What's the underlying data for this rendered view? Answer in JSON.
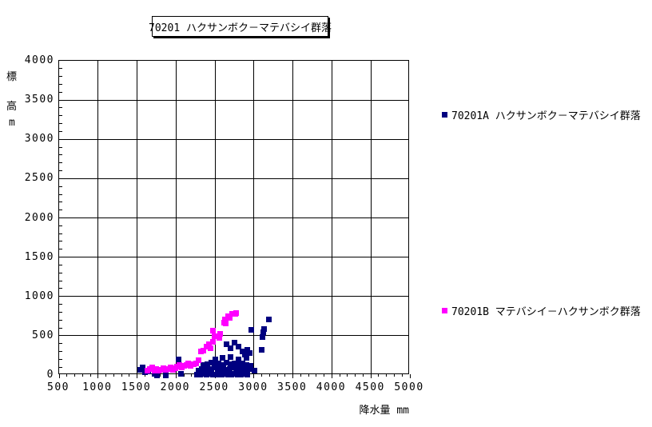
{
  "title": "70201 ハクサンボク－マテバシイ群落",
  "y_axis_title_chars": [
    "標",
    "高",
    "m"
  ],
  "x_axis_title": "降水量 mm",
  "colors": {
    "series_a": "#000080",
    "series_b": "#FF00FF",
    "grid": "#000000",
    "background": "#FFFFFF"
  },
  "legend": {
    "items": [
      {
        "label": "70201A ハクサンボク－マテバシイ群落",
        "color": "#000080"
      },
      {
        "label": "70201B マテバシイ－ハクサンボク群落",
        "color": "#FF00FF"
      }
    ]
  },
  "chart_data": {
    "type": "scatter",
    "title": "70201 ハクサンボク－マテバシイ群落",
    "xlabel": "降水量 mm",
    "ylabel": "標高m",
    "xlim": [
      500,
      5000
    ],
    "ylim": [
      0,
      4000
    ],
    "xticks": [
      500,
      1000,
      1500,
      2000,
      2500,
      3000,
      3500,
      4000,
      4500,
      5000
    ],
    "yticks": [
      0,
      500,
      1000,
      1500,
      2000,
      2500,
      3000,
      3500,
      4000
    ],
    "minor_tick_step_x": 100,
    "minor_tick_step_y": 100,
    "grid": true,
    "legend_position": "right",
    "marker": "square",
    "series": [
      {
        "name": "70201A ハクサンボク－マテバシイ群落",
        "color": "#000080",
        "points": [
          [
            1545,
            70
          ],
          [
            1570,
            100
          ],
          [
            1600,
            40
          ],
          [
            1640,
            45
          ],
          [
            1690,
            85
          ],
          [
            1730,
            20
          ],
          [
            1760,
            0
          ],
          [
            1870,
            0
          ],
          [
            2030,
            200
          ],
          [
            2060,
            15
          ],
          [
            2270,
            10
          ],
          [
            2310,
            5
          ],
          [
            2350,
            15
          ],
          [
            2390,
            5
          ],
          [
            2430,
            20
          ],
          [
            2470,
            10
          ],
          [
            2510,
            5
          ],
          [
            2550,
            15
          ],
          [
            2590,
            5
          ],
          [
            2630,
            20
          ],
          [
            2670,
            10
          ],
          [
            2710,
            5
          ],
          [
            2750,
            15
          ],
          [
            2790,
            10
          ],
          [
            2830,
            5
          ],
          [
            2870,
            15
          ],
          [
            2910,
            10
          ],
          [
            2290,
            60
          ],
          [
            2330,
            75
          ],
          [
            2370,
            90
          ],
          [
            2410,
            65
          ],
          [
            2450,
            80
          ],
          [
            2490,
            95
          ],
          [
            2530,
            60
          ],
          [
            2570,
            75
          ],
          [
            2610,
            90
          ],
          [
            2650,
            65
          ],
          [
            2690,
            80
          ],
          [
            2730,
            95
          ],
          [
            2770,
            60
          ],
          [
            2810,
            75
          ],
          [
            2850,
            90
          ],
          [
            2890,
            65
          ],
          [
            2930,
            80
          ],
          [
            2350,
            125
          ],
          [
            2400,
            140
          ],
          [
            2450,
            160
          ],
          [
            2500,
            130
          ],
          [
            2550,
            145
          ],
          [
            2600,
            125
          ],
          [
            2650,
            155
          ],
          [
            2700,
            135
          ],
          [
            2750,
            150
          ],
          [
            2800,
            125
          ],
          [
            2850,
            145
          ],
          [
            2900,
            130
          ],
          [
            2950,
            120
          ],
          [
            2500,
            200
          ],
          [
            2600,
            215
          ],
          [
            2700,
            230
          ],
          [
            2800,
            200
          ],
          [
            2900,
            220
          ],
          [
            3010,
            60
          ],
          [
            2650,
            390
          ],
          [
            2700,
            340
          ],
          [
            2750,
            410
          ],
          [
            2800,
            365
          ],
          [
            2850,
            300
          ],
          [
            2880,
            260
          ],
          [
            2910,
            320
          ],
          [
            2940,
            280
          ],
          [
            2970,
            570
          ],
          [
            3100,
            320
          ],
          [
            3110,
            480
          ],
          [
            3120,
            540
          ],
          [
            3130,
            590
          ],
          [
            3190,
            710
          ]
        ]
      },
      {
        "name": "70201B マテバシイ－ハクサンボク群落",
        "color": "#FF00FF",
        "points": [
          [
            1630,
            60
          ],
          [
            1660,
            80
          ],
          [
            1690,
            100
          ],
          [
            1720,
            60
          ],
          [
            1750,
            75
          ],
          [
            1780,
            60
          ],
          [
            1810,
            70
          ],
          [
            1840,
            85
          ],
          [
            1870,
            65
          ],
          [
            1900,
            75
          ],
          [
            1930,
            95
          ],
          [
            1960,
            65
          ],
          [
            1990,
            85
          ],
          [
            2010,
            105
          ],
          [
            2040,
            125
          ],
          [
            2070,
            95
          ],
          [
            2100,
            115
          ],
          [
            2130,
            130
          ],
          [
            2160,
            145
          ],
          [
            2190,
            120
          ],
          [
            2230,
            135
          ],
          [
            2260,
            150
          ],
          [
            2290,
            185
          ],
          [
            2320,
            300
          ],
          [
            2350,
            315
          ],
          [
            2390,
            360
          ],
          [
            2420,
            390
          ],
          [
            2440,
            340
          ],
          [
            2470,
            420
          ],
          [
            2470,
            560
          ],
          [
            2490,
            490
          ],
          [
            2540,
            490
          ],
          [
            2570,
            520
          ],
          [
            2560,
            470
          ],
          [
            2620,
            670
          ],
          [
            2640,
            660
          ],
          [
            2630,
            710
          ],
          [
            2670,
            750
          ],
          [
            2690,
            725
          ],
          [
            2720,
            780
          ],
          [
            2760,
            775
          ],
          [
            2770,
            790
          ]
        ]
      }
    ]
  }
}
